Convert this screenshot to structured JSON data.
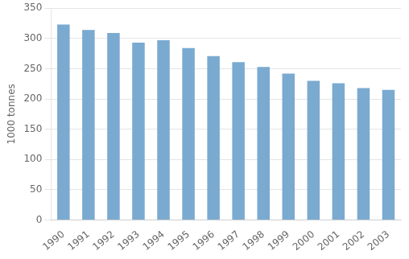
{
  "chart_data": {
    "type": "bar",
    "categories": [
      "1990",
      "1991",
      "1992",
      "1993",
      "1994",
      "1995",
      "1996",
      "1997",
      "1998",
      "1999",
      "2000",
      "2001",
      "2002",
      "2003"
    ],
    "values": [
      323,
      314,
      309,
      293,
      297,
      284,
      271,
      261,
      253,
      242,
      230,
      226,
      218,
      215
    ],
    "color": "#7aaad0",
    "ylabel": "1000 tonnes",
    "ylim": [
      0,
      350
    ],
    "yticks": [
      0,
      50,
      100,
      150,
      200,
      250,
      300,
      350
    ],
    "grid": true
  }
}
